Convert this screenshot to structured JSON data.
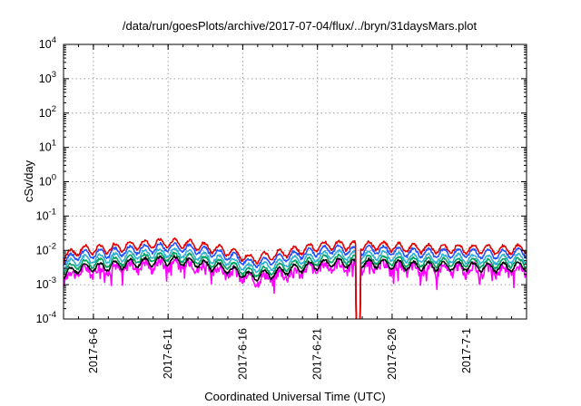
{
  "chart_data": {
    "type": "line",
    "title": "/data/run/goesPlots/archive/2017-07-04/flux/../bryn/31daysMars.plot",
    "xlabel": "Coordinated Universal Time (UTC)",
    "ylabel": "cSv/day",
    "y_scale": "log",
    "ylim": [
      0.0001,
      10000
    ],
    "xlim_days": [
      "2017-06-04",
      "2017-07-05"
    ],
    "grid": true,
    "x_ticks": [
      "2017-6-6",
      "2017-6-11",
      "2017-6-16",
      "2017-6-21",
      "2017-6-26",
      "2017-7-1"
    ],
    "y_ticks": [
      {
        "base": "10",
        "exp": "-4"
      },
      {
        "base": "10",
        "exp": "-3"
      },
      {
        "base": "10",
        "exp": "-2"
      },
      {
        "base": "10",
        "exp": "-1"
      },
      {
        "base": "10",
        "exp": "0"
      },
      {
        "base": "10",
        "exp": "1"
      },
      {
        "base": "10",
        "exp": "2"
      },
      {
        "base": "10",
        "exp": "3"
      },
      {
        "base": "10",
        "exp": "4"
      }
    ],
    "series_colors": [
      "#ff00ff",
      "#000000",
      "#00a060",
      "#30b0d0",
      "#2050ff",
      "#e00000"
    ],
    "series_base_values": [
      0.0028,
      0.0035,
      0.0045,
      0.006,
      0.0085,
      0.0115
    ],
    "dropout": {
      "start": "2017-06-23.6",
      "end": "2017-06-23.9",
      "min_value": 0.0001
    },
    "profile": [
      {
        "day": 0.0,
        "factor": 0.55
      },
      {
        "day": 1.0,
        "factor": 0.9
      },
      {
        "day": 3.0,
        "factor": 1.0
      },
      {
        "day": 5.0,
        "factor": 1.3
      },
      {
        "day": 7.0,
        "factor": 1.5
      },
      {
        "day": 8.5,
        "factor": 1.35
      },
      {
        "day": 10.0,
        "factor": 1.0
      },
      {
        "day": 11.0,
        "factor": 0.85
      },
      {
        "day": 12.5,
        "factor": 0.5
      },
      {
        "day": 14.0,
        "factor": 0.62
      },
      {
        "day": 16.0,
        "factor": 0.95
      },
      {
        "day": 18.0,
        "factor": 1.3
      },
      {
        "day": 19.5,
        "factor": 1.2
      },
      {
        "day": 21.0,
        "factor": 1.25
      },
      {
        "day": 23.0,
        "factor": 1.05
      },
      {
        "day": 25.0,
        "factor": 1.0
      },
      {
        "day": 27.0,
        "factor": 1.0
      },
      {
        "day": 29.0,
        "factor": 0.92
      },
      {
        "day": 31.0,
        "factor": 1.05
      }
    ]
  }
}
